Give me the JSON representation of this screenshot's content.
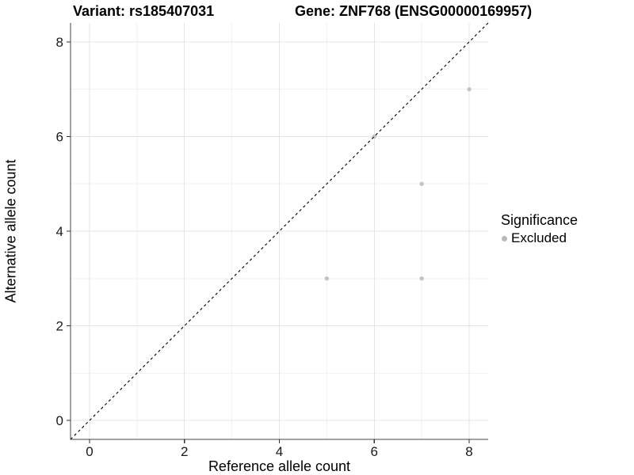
{
  "titles": {
    "variant": "Variant: rs185407031",
    "gene": "Gene: ZNF768 (ENSG00000169957)"
  },
  "chart_data": {
    "type": "scatter",
    "title_left": "Variant: rs185407031",
    "title_right": "Gene: ZNF768 (ENSG00000169957)",
    "xlabel": "Reference allele count",
    "ylabel": "Alternative allele count",
    "xlim": [
      -0.4,
      8.4
    ],
    "ylim": [
      -0.4,
      8.4
    ],
    "xticks": [
      0,
      2,
      4,
      6,
      8
    ],
    "yticks": [
      0,
      2,
      4,
      6,
      8
    ],
    "xminor": [
      1,
      3,
      5,
      7
    ],
    "yminor": [
      1,
      3,
      5,
      7
    ],
    "grid": "major and minor on, white panel",
    "legend_position": "right",
    "identity_line": {
      "style": "dashed",
      "color": "#000000",
      "x1": -0.4,
      "y1": -0.4,
      "x2": 8.4,
      "y2": 8.4
    },
    "series": [
      {
        "name": "Excluded",
        "marker": "circle",
        "color": "#c4c4c4",
        "points": [
          [
            5,
            3
          ],
          [
            6,
            6
          ],
          [
            7,
            3
          ],
          [
            7,
            5
          ],
          [
            8,
            7
          ]
        ]
      }
    ],
    "legend": {
      "title": "Significance",
      "entries": [
        {
          "label": "Excluded",
          "marker_color": "#b9b9b9"
        }
      ]
    },
    "colors": {
      "grid_major": "#e5e5e5",
      "grid_minor": "#f2f2f2",
      "axis_line": "#464646",
      "tick_mark": "#333333",
      "tick_label": "#1a1a1a",
      "point": "#c4c4c4"
    }
  }
}
